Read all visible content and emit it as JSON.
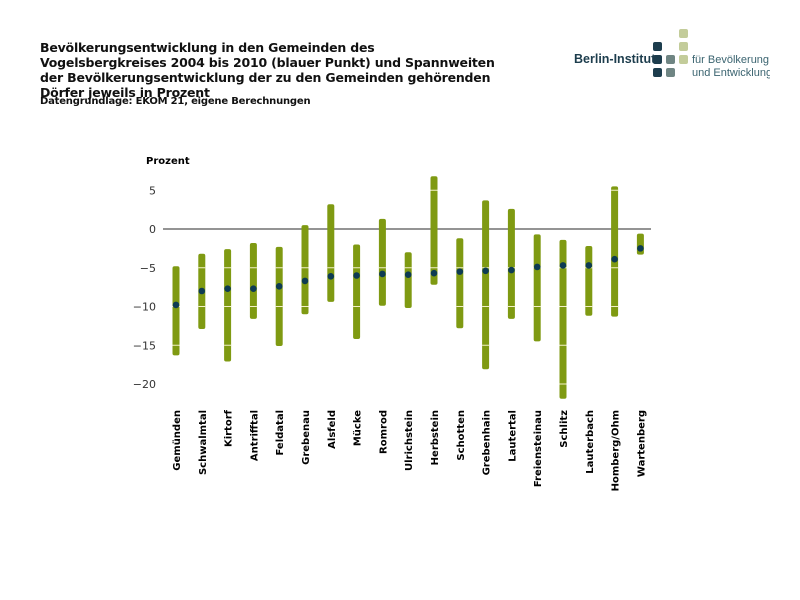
{
  "header": {
    "title": "Bevölkerungsentwicklung in den Gemeinden des Vogelsbergkreises 2004 bis 2010 (blauer Punkt) und Spannweiten der Bevölkerungsentwicklung der zu den Gemeinden gehörenden Dörfer jeweils in Prozent",
    "source": "Datengrundlage: EKOM 21, eigene Berechnungen"
  },
  "logo": {
    "name": "Berlin-Institut",
    "line1": "für Bevölkerung",
    "line2": "und Entwicklung"
  },
  "chart_data": {
    "type": "range-dot",
    "ylabel": "Prozent",
    "ylim": [
      -22,
      7
    ],
    "yticks": [
      5,
      0,
      -5,
      -10,
      -15,
      -20
    ],
    "ytick_labels": [
      "5",
      "0",
      "−5",
      "−10",
      "−15",
      "−20"
    ],
    "colors": {
      "range": "#7f9a12",
      "dot": "#0d3b52",
      "zero_line": "#555555"
    },
    "categories": [
      "Gemünden",
      "Schwalmtal",
      "Kirtorf",
      "Antrifftal",
      "Feldatal",
      "Grebenau",
      "Alsfeld",
      "Mücke",
      "Romrod",
      "Ulrichstein",
      "Herbstein",
      "Schotten",
      "Grebenhain",
      "Lautertal",
      "Freiensteinau",
      "Schlitz",
      "Lauterbach",
      "Homberg/Ohm",
      "Wartenberg"
    ],
    "series": [
      {
        "key": "min",
        "values": [
          -16.3,
          -12.9,
          -17.1,
          -11.6,
          -15.1,
          -11.0,
          -9.4,
          -14.2,
          -9.9,
          -10.2,
          -7.2,
          -12.8,
          -18.1,
          -11.6,
          -14.5,
          -21.9,
          -11.2,
          -11.3,
          -3.3
        ]
      },
      {
        "key": "max",
        "values": [
          -4.8,
          -3.2,
          -2.6,
          -1.8,
          -2.3,
          0.5,
          3.2,
          -2.0,
          1.3,
          -3.0,
          6.8,
          -1.2,
          3.7,
          2.6,
          -0.7,
          -1.4,
          -2.2,
          5.5,
          -0.6
        ]
      },
      {
        "key": "municipality",
        "values": [
          -9.8,
          -8.0,
          -7.7,
          -7.7,
          -7.4,
          -6.7,
          -6.1,
          -6.0,
          -5.8,
          -5.9,
          -5.7,
          -5.5,
          -5.4,
          -5.3,
          -4.9,
          -4.7,
          -4.7,
          -3.9,
          -2.5
        ]
      }
    ]
  }
}
